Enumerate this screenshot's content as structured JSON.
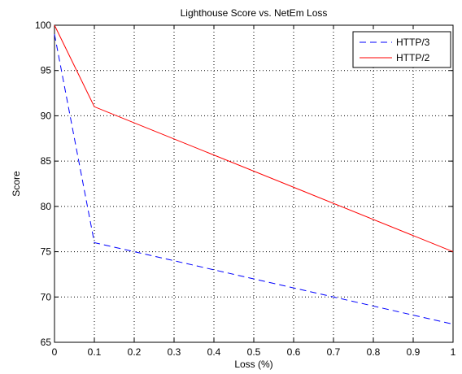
{
  "chart_data": {
    "type": "line",
    "title": "Lighthouse Score vs. NetEm Loss",
    "xlabel": "Loss (%)",
    "ylabel": "Score",
    "xlim": [
      0,
      1
    ],
    "ylim": [
      65,
      100
    ],
    "xticks": [
      "0",
      "0.1",
      "0.2",
      "0.3",
      "0.4",
      "0.5",
      "0.6",
      "0.7",
      "0.8",
      "0.9",
      "1"
    ],
    "yticks": [
      "65",
      "70",
      "75",
      "80",
      "85",
      "90",
      "95",
      "100"
    ],
    "grid": true,
    "legend_position": "top-right",
    "series": [
      {
        "name": "HTTP/3",
        "color": "#0000ff",
        "style": "dashed",
        "x": [
          0,
          0.1,
          1
        ],
        "y": [
          99,
          76,
          67
        ]
      },
      {
        "name": "HTTP/2",
        "color": "#ff0000",
        "style": "solid",
        "x": [
          0,
          0.1,
          1
        ],
        "y": [
          100,
          91,
          75
        ]
      }
    ]
  }
}
